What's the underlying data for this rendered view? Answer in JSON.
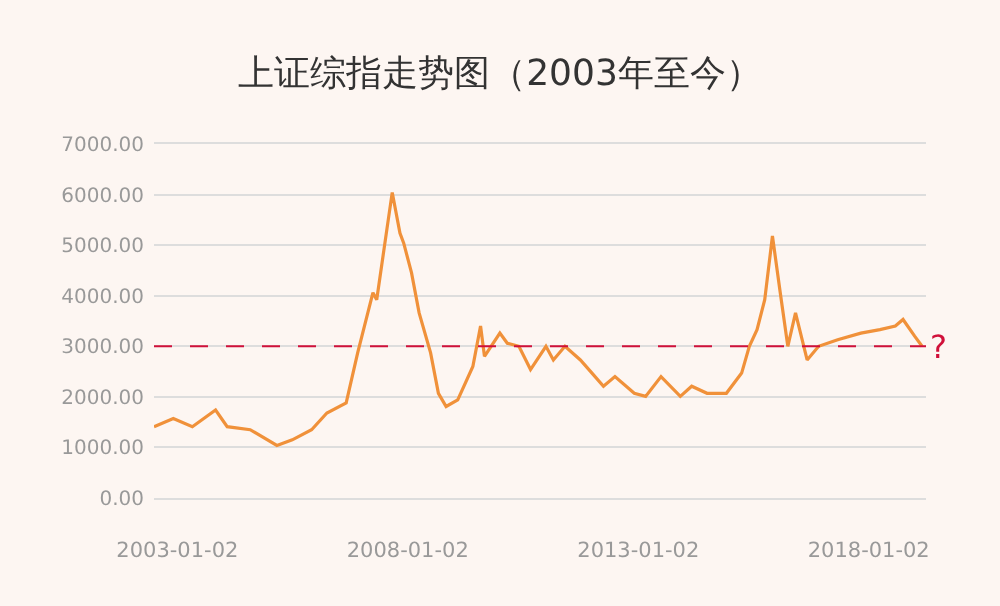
{
  "chart_data": {
    "type": "line",
    "title": "上证综指走势图（2003年至今）",
    "x": [
      "2002-07",
      "2002-12",
      "2003-05",
      "2003-11",
      "2004-02",
      "2004-08",
      "2005-03",
      "2005-07",
      "2005-12",
      "2006-04",
      "2006-09",
      "2006-12",
      "2007-04",
      "2007-05",
      "2007-08",
      "2007-09",
      "2007-11",
      "2007-12",
      "2008-02",
      "2008-04",
      "2008-07",
      "2008-09",
      "2008-11",
      "2009-02",
      "2009-06",
      "2009-08",
      "2009-09",
      "2010-01",
      "2010-03",
      "2010-06",
      "2010-09",
      "2011-01",
      "2011-03",
      "2011-06",
      "2011-10",
      "2012-01",
      "2012-04",
      "2012-07",
      "2012-12",
      "2013-03",
      "2013-07",
      "2013-12",
      "2014-03",
      "2014-07",
      "2014-12",
      "2015-04",
      "2015-06",
      "2015-08",
      "2015-10",
      "2015-12",
      "2016-02",
      "2016-04",
      "2016-06",
      "2016-09",
      "2016-12",
      "2017-05",
      "2017-11",
      "2018-04",
      "2018-08",
      "2018-10",
      "2019-01",
      "2019-03"
    ],
    "series": [
      {
        "color": "#f0913a",
        "values": [
          1410,
          1570,
          1410,
          1740,
          1410,
          1350,
          1040,
          1150,
          1350,
          1680,
          1880,
          2870,
          4060,
          3920,
          5510,
          6040,
          5240,
          5040,
          4450,
          3660,
          2870,
          2070,
          1810,
          1940,
          2600,
          3400,
          2800,
          3260,
          3060,
          3000,
          2540,
          3000,
          2730,
          3000,
          2730,
          2470,
          2210,
          2400,
          2070,
          2010,
          2400,
          2010,
          2210,
          2070,
          2070,
          2470,
          3000,
          3330,
          3920,
          5180,
          4060,
          3000,
          3660,
          2730,
          3000,
          3130,
          3260,
          3330,
          3400,
          3530,
          3200,
          3000
        ]
      }
    ],
    "xlim": [
      "2002-07",
      "2019-04"
    ],
    "xticks": [
      "2003-01-02",
      "2008-01-02",
      "2013-01-02",
      "2018-01-02"
    ],
    "ylim": [
      0,
      7000
    ],
    "yticks": [
      {
        "value": 0,
        "label": "0.00"
      },
      {
        "value": 1000,
        "label": "1000.00"
      },
      {
        "value": 2000,
        "label": "2000.00"
      },
      {
        "value": 3000,
        "label": "3000.00"
      },
      {
        "value": 4000,
        "label": "4000.00"
      },
      {
        "value": 5000,
        "label": "5000.00"
      },
      {
        "value": 6000,
        "label": "6000.00"
      },
      {
        "value": 7000,
        "label": "7000.00"
      }
    ],
    "ref_lines": [
      {
        "axis": "y",
        "value": 3000,
        "label": "?",
        "color": "#d0103a",
        "line_style": "dashed"
      }
    ],
    "grid": "y",
    "marker": "none",
    "line_style": "solid"
  }
}
